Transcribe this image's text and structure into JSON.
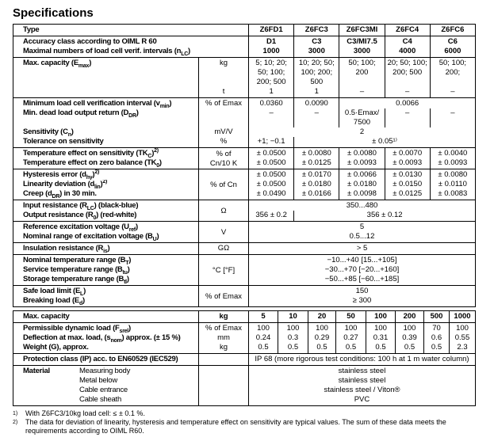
{
  "title": "Specifications",
  "table1": {
    "groups": [
      {
        "rows": [
          {
            "label": [
              {
                "t": "Type"
              }
            ],
            "label_span": 2,
            "cells": [
              {
                "v": "Z6FD1",
                "b": 1
              },
              {
                "v": "Z6FC3",
                "b": 1
              },
              {
                "v": "Z6FC3MI",
                "b": 1
              },
              {
                "v": "Z6FC4",
                "b": 1
              },
              {
                "v": "Z6FC6",
                "b": 1
              }
            ]
          }
        ]
      },
      {
        "rows": [
          {
            "label": [
              {
                "t": "Accuracy class according to OIML R 60"
              }
            ],
            "label_span": 2,
            "cells": [
              {
                "v": "D1",
                "b": 1
              },
              {
                "v": "C3",
                "b": 1
              },
              {
                "v": "C3/MI7.5",
                "b": 1
              },
              {
                "v": "C4",
                "b": 1
              },
              {
                "v": "C6",
                "b": 1
              }
            ]
          },
          {
            "label": [
              {
                "t": "Maximal numbers of load cell verif. intervals (n"
              },
              {
                "s": "LC"
              },
              {
                "t": ")"
              }
            ],
            "label_span": 2,
            "cells": [
              {
                "v": "1000",
                "b": 1
              },
              {
                "v": "3000",
                "b": 1
              },
              {
                "v": "3000",
                "b": 1
              },
              {
                "v": "4000",
                "b": 1
              },
              {
                "v": "6000",
                "b": 1
              }
            ]
          }
        ]
      },
      {
        "rows": [
          {
            "label": [
              {
                "t": "Max. capacity (E"
              },
              {
                "s": "max"
              },
              {
                "t": ")"
              }
            ],
            "unit": "kg",
            "unit_top": 1,
            "cells": [
              {
                "v": "5; 10; 20;\n50; 100;\n200; 500"
              },
              {
                "v": "10; 20; 50;\n100; 200;\n500"
              },
              {
                "v": "50; 100;\n200"
              },
              {
                "v": "20; 50; 100;\n200; 500"
              },
              {
                "v": "50; 100;\n200;"
              }
            ]
          },
          {
            "label": [
              {
                "t": ""
              }
            ],
            "unit": "t",
            "cells": [
              {
                "v": "1"
              },
              {
                "v": "1"
              },
              {
                "v": "–"
              },
              {
                "v": "–"
              },
              {
                "v": "–"
              }
            ]
          }
        ]
      },
      {
        "rows": [
          {
            "label": [
              {
                "t": "Minimum load cell verification interval (v"
              },
              {
                "s": "min"
              },
              {
                "t": ")"
              }
            ],
            "unit": "% of Emax",
            "cells": [
              {
                "v": "0.0360"
              },
              {
                "v": "0.0090"
              },
              {
                "v": "0.0066",
                "span": 3
              }
            ]
          },
          {
            "label": [
              {
                "t": "Min. dead load output return (D"
              },
              {
                "s": "DR"
              },
              {
                "t": ")"
              }
            ],
            "unit": "",
            "cells": [
              {
                "v": "–"
              },
              {
                "v": "–"
              },
              {
                "v": "0.5·Emax/\n7500"
              },
              {
                "v": "–"
              },
              {
                "v": "–"
              }
            ]
          },
          {
            "label": [
              {
                "t": "Sensitivity (C"
              },
              {
                "s": "n"
              },
              {
                "t": ")"
              }
            ],
            "unit": "mV/V",
            "cells": [
              {
                "v": "2",
                "span": 5
              }
            ]
          },
          {
            "label": [
              {
                "t": "Tolerance on sensitivity"
              }
            ],
            "unit": "%",
            "cells": [
              {
                "v": "+1; −0.1"
              },
              {
                "v": "± 0.05¹⁾",
                "span": 4
              }
            ]
          }
        ]
      },
      {
        "rows": [
          {
            "label": [
              {
                "t": "Temperature effect on sensitivity (TK"
              },
              {
                "s": "C"
              },
              {
                "t": ")"
              },
              {
                "p": "2)"
              }
            ],
            "unit": "% of\nCn/10 K",
            "unit_rows": 2,
            "cells": [
              {
                "v": "± 0.0500"
              },
              {
                "v": "± 0.0080"
              },
              {
                "v": "± 0.0080"
              },
              {
                "v": "± 0.0070"
              },
              {
                "v": "± 0.0040"
              }
            ]
          },
          {
            "label": [
              {
                "t": "Temperature effect on zero balance (TK"
              },
              {
                "s": "0"
              },
              {
                "t": ")"
              }
            ],
            "cells": [
              {
                "v": "± 0.0500"
              },
              {
                "v": "± 0.0125"
              },
              {
                "v": "± 0.0093"
              },
              {
                "v": "± 0.0093"
              },
              {
                "v": "± 0.0093"
              }
            ]
          }
        ]
      },
      {
        "rows": [
          {
            "label": [
              {
                "t": "Hysteresis error (d"
              },
              {
                "s": "hy"
              },
              {
                "t": ")"
              },
              {
                "p": "2)"
              }
            ],
            "unit": "% of Cn",
            "unit_rows": 3,
            "cells": [
              {
                "v": "± 0.0500"
              },
              {
                "v": "± 0.0170"
              },
              {
                "v": "± 0.0066"
              },
              {
                "v": "± 0.0130"
              },
              {
                "v": "± 0.0080"
              }
            ]
          },
          {
            "label": [
              {
                "t": "Linearity deviation (d"
              },
              {
                "s": "lin"
              },
              {
                "t": ")"
              },
              {
                "p": "2)"
              }
            ],
            "cells": [
              {
                "v": "± 0.0500"
              },
              {
                "v": "± 0.0180"
              },
              {
                "v": "± 0.0180"
              },
              {
                "v": "± 0.0150"
              },
              {
                "v": "± 0.0110"
              }
            ]
          },
          {
            "label": [
              {
                "t": "Creep (d"
              },
              {
                "s": "DR"
              },
              {
                "t": ") in 30 min."
              }
            ],
            "cells": [
              {
                "v": "± 0.0490"
              },
              {
                "v": "± 0.0166"
              },
              {
                "v": "± 0.0098"
              },
              {
                "v": "± 0.0125"
              },
              {
                "v": "± 0.0083"
              }
            ]
          }
        ]
      },
      {
        "rows": [
          {
            "label": [
              {
                "t": "Input resistance (R"
              },
              {
                "s": "LC"
              },
              {
                "t": ") (black-blue)"
              }
            ],
            "unit": "Ω",
            "unit_rows": 2,
            "cells": [
              {
                "v": "350...480",
                "span": 5
              }
            ]
          },
          {
            "label": [
              {
                "t": "Output resistance (R"
              },
              {
                "s": "0"
              },
              {
                "t": ") (red-white)"
              }
            ],
            "cells": [
              {
                "v": "356 ± 0.2"
              },
              {
                "v": "356 ± 0.12",
                "span": 4
              }
            ]
          }
        ]
      },
      {
        "rows": [
          {
            "label": [
              {
                "t": "Reference excitation voltage (U"
              },
              {
                "s": "ref"
              },
              {
                "t": ")"
              }
            ],
            "unit": "V",
            "unit_rows": 2,
            "cells": [
              {
                "v": "5",
                "span": 5
              }
            ]
          },
          {
            "label": [
              {
                "t": "Nominal range of excitation voltage (B"
              },
              {
                "s": "U"
              },
              {
                "t": ")"
              }
            ],
            "cells": [
              {
                "v": "0.5...12",
                "span": 5
              }
            ]
          }
        ]
      },
      {
        "rows": [
          {
            "label": [
              {
                "t": "Insulation resistance (R"
              },
              {
                "s": "is"
              },
              {
                "t": ")"
              }
            ],
            "unit": "GΩ",
            "cells": [
              {
                "v": "> 5",
                "span": 5
              }
            ]
          }
        ]
      },
      {
        "rows": [
          {
            "label": [
              {
                "t": "Nominal temperature range (B"
              },
              {
                "s": "T"
              },
              {
                "t": ")"
              }
            ],
            "unit": "°C [°F]",
            "unit_rows": 3,
            "cells": [
              {
                "v": "−10...+40 [15...+105]",
                "span": 5
              }
            ]
          },
          {
            "label": [
              {
                "t": "Service temperature range (B"
              },
              {
                "s": "tu"
              },
              {
                "t": ")"
              }
            ],
            "cells": [
              {
                "v": "−30...+70 [−20...+160]",
                "span": 5
              }
            ]
          },
          {
            "label": [
              {
                "t": "Storage temperature range (B"
              },
              {
                "s": "tl"
              },
              {
                "t": ")"
              }
            ],
            "cells": [
              {
                "v": "−50...+85 [−60...+185]",
                "span": 5
              }
            ]
          }
        ]
      },
      {
        "rows": [
          {
            "label": [
              {
                "t": "Safe load limit (E"
              },
              {
                "s": "L"
              },
              {
                "t": ")"
              }
            ],
            "unit": "% of Emax",
            "unit_rows": 2,
            "cells": [
              {
                "v": "150",
                "span": 5
              }
            ]
          },
          {
            "label": [
              {
                "t": "Breaking load (E"
              },
              {
                "s": "d"
              },
              {
                "t": ")"
              }
            ],
            "cells": [
              {
                "v": "≥ 300",
                "span": 5
              }
            ]
          }
        ]
      }
    ]
  },
  "table2": {
    "groups": [
      {
        "rows": [
          {
            "label": [
              {
                "t": "Max. capacity"
              }
            ],
            "unit": "kg",
            "unit_bold": 1,
            "cells": [
              {
                "v": "5",
                "b": 1
              },
              {
                "v": "10",
                "b": 1
              },
              {
                "v": "20",
                "b": 1
              },
              {
                "v": "50",
                "b": 1
              },
              {
                "v": "100",
                "b": 1
              },
              {
                "v": "200",
                "b": 1
              },
              {
                "v": "500",
                "b": 1
              },
              {
                "v": "1000",
                "b": 1
              }
            ]
          }
        ]
      },
      {
        "rows": [
          {
            "label": [
              {
                "t": "Permissible dynamic load (F"
              },
              {
                "s": "srel"
              },
              {
                "t": ")"
              }
            ],
            "unit": "% of Emax",
            "cells": [
              {
                "v": "100"
              },
              {
                "v": "100"
              },
              {
                "v": "100"
              },
              {
                "v": "100"
              },
              {
                "v": "100"
              },
              {
                "v": "100"
              },
              {
                "v": "70"
              },
              {
                "v": "100"
              }
            ]
          },
          {
            "label": [
              {
                "t": "Deflection at max. load, (s"
              },
              {
                "s": "nom"
              },
              {
                "t": ") approx. (± 15 %)"
              }
            ],
            "unit": "mm",
            "cells": [
              {
                "v": "0.24"
              },
              {
                "v": "0.3"
              },
              {
                "v": "0.29"
              },
              {
                "v": "0.27"
              },
              {
                "v": "0.31"
              },
              {
                "v": "0.39"
              },
              {
                "v": "0.6"
              },
              {
                "v": "0.55"
              }
            ]
          },
          {
            "label": [
              {
                "t": "Weight (G), approx."
              }
            ],
            "unit": "kg",
            "cells": [
              {
                "v": "0.5"
              },
              {
                "v": "0.5"
              },
              {
                "v": "0.5"
              },
              {
                "v": "0.5"
              },
              {
                "v": "0.5"
              },
              {
                "v": "0.5"
              },
              {
                "v": "0.5"
              },
              {
                "v": "2.3"
              }
            ]
          }
        ]
      },
      {
        "rows": [
          {
            "label": [
              {
                "t": "Protection class (IP) acc. to EN60529 (IEC529)"
              }
            ],
            "unit": "",
            "cells": [
              {
                "v": "IP 68   (more rigorous test conditions: 100 h at 1 m water column)",
                "span": 8
              }
            ]
          }
        ]
      },
      {
        "rows": [
          {
            "material": {
              "label": "Material",
              "items": [
                "Measuring body",
                "Metal below",
                "Cable entrance",
                "Cable sheath"
              ]
            },
            "unit": "",
            "cells": [
              {
                "v": "stainless steel\nstainless steel\nstainless steel / Viton®\nPVC",
                "span": 8
              }
            ]
          }
        ]
      }
    ]
  },
  "footnotes": [
    {
      "mark": "1)",
      "text": "With Z6FC3/10kg load cell: ≤ ± 0.1 %."
    },
    {
      "mark": "2)",
      "text": "The data for deviation of linearity, hysteresis and temperature effect on sensitivity are typical values. The sum of these data meets the requirements according to OIML R60."
    }
  ]
}
